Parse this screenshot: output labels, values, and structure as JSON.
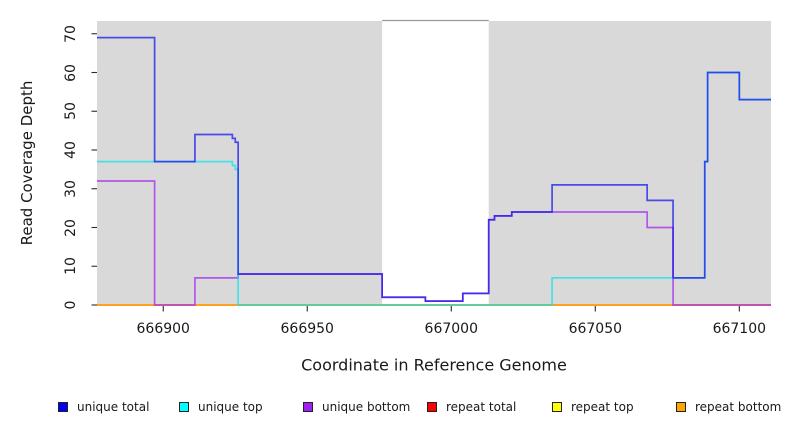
{
  "chart_data": {
    "type": "line",
    "step": "after",
    "title": "",
    "xlabel": "Coordinate in Reference Genome",
    "ylabel": "Read Coverage Depth",
    "xlim": [
      666877,
      667111
    ],
    "ylim": [
      0,
      70
    ],
    "x_ticks": [
      666900,
      666950,
      667000,
      667050,
      667100
    ],
    "y_ticks": [
      0,
      10,
      20,
      30,
      40,
      50,
      60,
      70
    ],
    "grid": false,
    "legend_position": "bottom",
    "panel_background": "#d9d9d9",
    "gap_band": {
      "x_start": 666976,
      "x_end": 667013,
      "fill": "#ffffff",
      "top_border_color": "#999999"
    },
    "series": [
      {
        "name": "unique total",
        "color": "#0000ee",
        "line_color": "#1a1aee",
        "opacity": 0.75,
        "points": [
          [
            666877,
            69
          ],
          [
            666897,
            37
          ],
          [
            666911,
            44
          ],
          [
            666924,
            43
          ],
          [
            666925,
            42
          ],
          [
            666926,
            8
          ],
          [
            666976,
            2
          ],
          [
            666991,
            1
          ],
          [
            667004,
            3
          ],
          [
            667013,
            22
          ],
          [
            667015,
            23
          ],
          [
            667021,
            24
          ],
          [
            667035,
            31
          ],
          [
            667068,
            27
          ],
          [
            667077,
            7
          ],
          [
            667088,
            37
          ],
          [
            667089,
            60
          ],
          [
            667100,
            53
          ],
          [
            667111,
            53
          ]
        ]
      },
      {
        "name": "unique top",
        "color": "#00ffff",
        "line_color": "#00e4ee",
        "opacity": 0.68,
        "points": [
          [
            666877,
            37
          ],
          [
            666924,
            36
          ],
          [
            666925,
            35
          ],
          [
            666926,
            0
          ],
          [
            667035,
            7
          ],
          [
            667088,
            37
          ],
          [
            667089,
            60
          ],
          [
            667100,
            53
          ],
          [
            667111,
            53
          ]
        ]
      },
      {
        "name": "unique bottom",
        "color": "#a020f0",
        "line_color": "#a935ee",
        "opacity": 0.8,
        "points": [
          [
            666877,
            32
          ],
          [
            666897,
            0
          ],
          [
            666911,
            7
          ],
          [
            666926,
            8
          ],
          [
            666976,
            2
          ],
          [
            666991,
            1
          ],
          [
            667004,
            3
          ],
          [
            667013,
            22
          ],
          [
            667015,
            23
          ],
          [
            667021,
            24
          ],
          [
            667068,
            20
          ],
          [
            667077,
            0
          ],
          [
            667111,
            0
          ]
        ]
      },
      {
        "name": "repeat total",
        "color": "#ff0000",
        "line_color": "#e00000",
        "opacity": 1,
        "points": [
          [
            666877,
            0
          ],
          [
            667111,
            0
          ]
        ]
      },
      {
        "name": "repeat top",
        "color": "#ffff00",
        "line_color": "#ffe800",
        "opacity": 1,
        "points": [
          [
            666877,
            0
          ],
          [
            667111,
            0
          ]
        ]
      },
      {
        "name": "repeat bottom",
        "color": "#ffa500",
        "line_color": "#ff9d26",
        "opacity": 1,
        "points": [
          [
            666877,
            0
          ],
          [
            667111,
            0
          ]
        ]
      }
    ]
  }
}
